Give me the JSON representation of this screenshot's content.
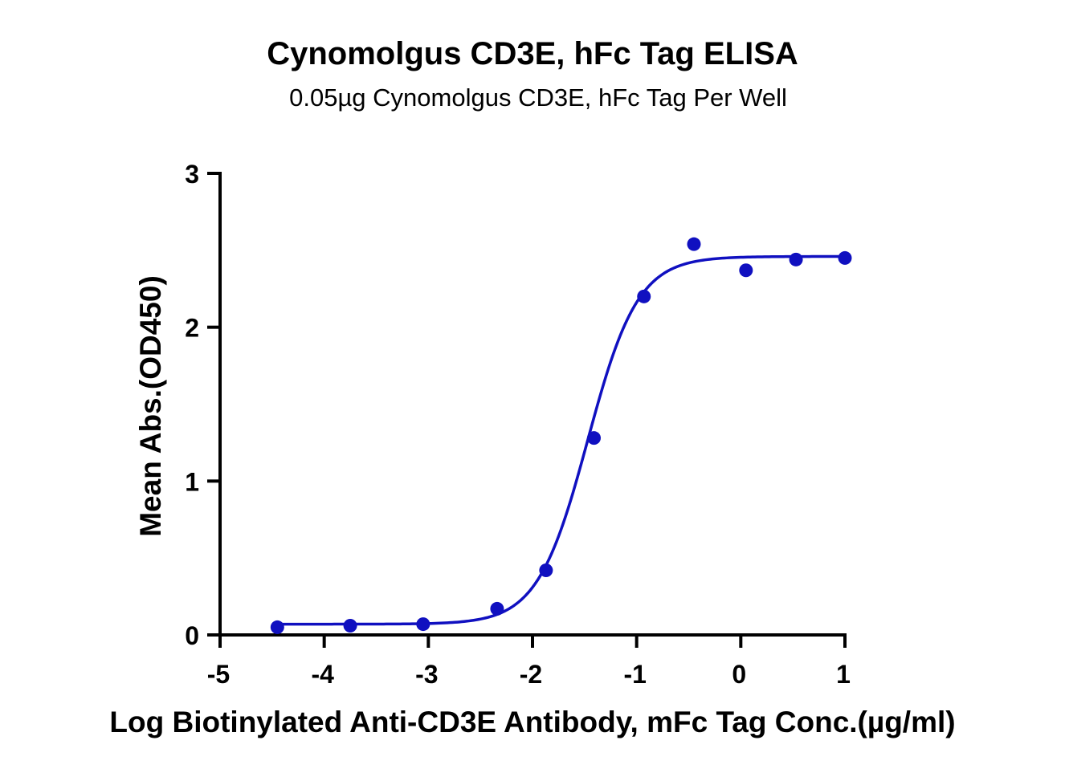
{
  "chart_data": {
    "type": "scatter",
    "title": "Cynomolgus CD3E, hFc Tag ELISA",
    "subtitle": "0.05µg Cynomolgus CD3E, hFc Tag Per Well",
    "xlabel": "Log Biotinylated Anti-CD3E Antibody, mFc Tag Conc.(µg/ml)",
    "ylabel": "Mean Abs.(OD450)",
    "xlim": [
      -5,
      1
    ],
    "ylim": [
      0,
      3
    ],
    "x_ticks": [
      -5,
      -4,
      -3,
      -2,
      -1,
      0,
      1
    ],
    "x_tick_labels": [
      "-5",
      "-4",
      "-3",
      "-2",
      "-1",
      "0",
      "1"
    ],
    "y_ticks": [
      0,
      1,
      2,
      3
    ],
    "y_tick_labels": [
      "0",
      "1",
      "2",
      "3"
    ],
    "grid": false,
    "color": "#1010c0",
    "series": [
      {
        "x": [
          -4.45,
          -3.75,
          -3.05,
          -2.34,
          -1.87,
          -1.41,
          -0.93,
          -0.45,
          0.05,
          0.53,
          1.0
        ],
        "y": [
          0.05,
          0.06,
          0.07,
          0.17,
          0.42,
          1.28,
          2.2,
          2.54,
          2.37,
          2.44,
          2.45
        ]
      }
    ],
    "fit_curve": {
      "type": "four-parameter-logistic",
      "bottom": 0.07,
      "top": 2.46,
      "logEC50": -1.47,
      "hill": 1.8
    }
  }
}
